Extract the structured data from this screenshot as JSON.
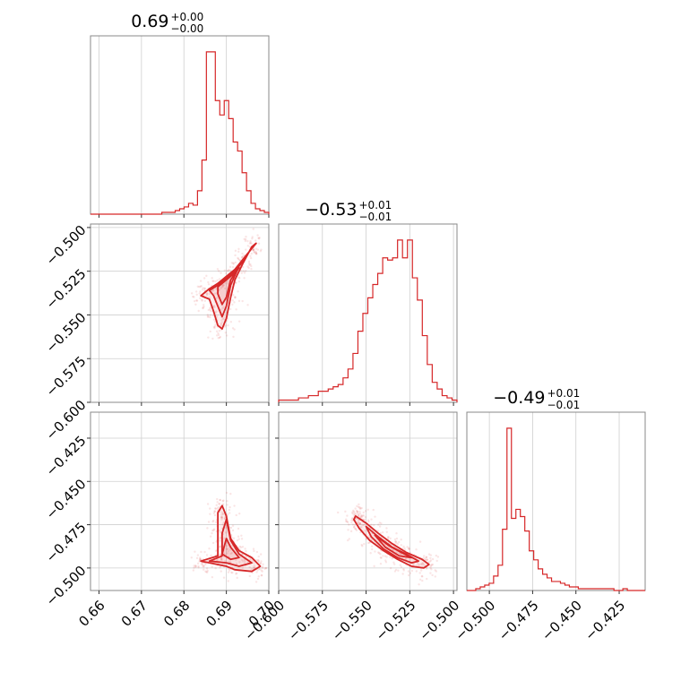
{
  "chart_data": {
    "type": "corner",
    "color": "#d62728",
    "parameters": [
      {
        "title_value": "0.69",
        "title_plus": "+0.00",
        "title_minus": "−0.00",
        "range": [
          0.658,
          0.7
        ],
        "ticks": [
          0.66,
          0.67,
          0.68,
          0.69,
          0.7
        ],
        "tick_labels": [
          "0.66",
          "0.67",
          "0.68",
          "0.69",
          "0.70"
        ]
      },
      {
        "title_value": "−0.53",
        "title_plus": "+0.01",
        "title_minus": "−0.01",
        "range": [
          -0.6,
          -0.498
        ],
        "ticks": [
          -0.6,
          -0.575,
          -0.55,
          -0.525,
          -0.5
        ],
        "tick_labels": [
          "−0.600",
          "−0.575",
          "−0.550",
          "−0.525",
          "−0.500"
        ]
      },
      {
        "title_value": "−0.49",
        "title_plus": "+0.01",
        "title_minus": "−0.01",
        "range": [
          -0.513,
          -0.41
        ],
        "ticks": [
          -0.5,
          -0.475,
          -0.45,
          -0.425
        ],
        "tick_labels": [
          "−0.500",
          "−0.475",
          "−0.450",
          "−0.425"
        ]
      }
    ],
    "histograms": [
      {
        "edges": [
          0.658,
          0.7
        ],
        "counts": [
          0,
          0,
          0,
          0,
          0,
          0,
          0,
          0,
          0,
          0,
          0,
          0,
          0,
          0,
          0,
          0,
          1,
          1,
          1,
          2,
          3,
          4,
          6,
          5,
          13,
          30,
          90,
          90,
          63,
          55,
          63,
          53,
          40,
          35,
          23,
          13,
          6,
          3,
          2,
          1
        ]
      },
      {
        "edges": [
          -0.6,
          -0.498
        ],
        "counts": [
          1,
          1,
          1,
          1,
          2,
          2,
          3,
          3,
          5,
          5,
          6,
          7,
          8,
          11,
          15,
          22,
          32,
          40,
          47,
          53,
          58,
          65,
          64,
          65,
          73,
          65,
          73,
          56,
          46,
          30,
          17,
          9,
          6,
          3,
          2,
          1
        ]
      },
      {
        "edges": [
          -0.513,
          -0.41
        ],
        "counts": [
          0,
          0,
          1,
          2,
          3,
          4,
          8,
          14,
          34,
          90,
          40,
          45,
          41,
          33,
          22,
          17,
          12,
          9,
          7,
          5,
          5,
          4,
          3,
          2,
          2,
          1,
          1,
          1,
          1,
          1,
          1,
          1,
          1,
          0,
          0,
          1,
          0,
          0,
          0,
          0
        ]
      }
    ],
    "pairs": [
      {
        "x": 0,
        "y": 1,
        "contours": [
          [
            [
              0.684,
              -0.539
            ],
            [
              0.686,
              -0.535
            ],
            [
              0.688,
              -0.532
            ],
            [
              0.69,
              -0.528
            ],
            [
              0.692,
              -0.524
            ],
            [
              0.694,
              -0.518
            ],
            [
              0.696,
              -0.512
            ],
            [
              0.697,
              -0.509
            ],
            [
              0.696,
              -0.511
            ],
            [
              0.694,
              -0.52
            ],
            [
              0.692,
              -0.53
            ],
            [
              0.691,
              -0.54
            ],
            [
              0.69,
              -0.552
            ],
            [
              0.689,
              -0.558
            ],
            [
              0.688,
              -0.556
            ],
            [
              0.687,
              -0.548
            ],
            [
              0.686,
              -0.541
            ],
            [
              0.684,
              -0.539
            ]
          ],
          [
            [
              0.686,
              -0.536
            ],
            [
              0.688,
              -0.533
            ],
            [
              0.69,
              -0.529
            ],
            [
              0.692,
              -0.525
            ],
            [
              0.694,
              -0.519
            ],
            [
              0.695,
              -0.515
            ],
            [
              0.693,
              -0.522
            ],
            [
              0.691,
              -0.533
            ],
            [
              0.69,
              -0.545
            ],
            [
              0.689,
              -0.551
            ],
            [
              0.688,
              -0.545
            ],
            [
              0.687,
              -0.539
            ],
            [
              0.686,
              -0.536
            ]
          ],
          [
            [
              0.688,
              -0.534
            ],
            [
              0.69,
              -0.53
            ],
            [
              0.692,
              -0.526
            ],
            [
              0.693,
              -0.523
            ],
            [
              0.691,
              -0.53
            ],
            [
              0.69,
              -0.54
            ],
            [
              0.689,
              -0.544
            ],
            [
              0.688,
              -0.538
            ],
            [
              0.688,
              -0.534
            ]
          ]
        ]
      },
      {
        "x": 0,
        "y": 2,
        "contours": [
          [
            [
              0.684,
              -0.496
            ],
            [
              0.688,
              -0.493
            ],
            [
              0.688,
              -0.48
            ],
            [
              0.688,
              -0.468
            ],
            [
              0.689,
              -0.464
            ],
            [
              0.69,
              -0.47
            ],
            [
              0.691,
              -0.483
            ],
            [
              0.693,
              -0.49
            ],
            [
              0.696,
              -0.494
            ],
            [
              0.698,
              -0.499
            ],
            [
              0.696,
              -0.502
            ],
            [
              0.692,
              -0.501
            ],
            [
              0.69,
              -0.499
            ],
            [
              0.688,
              -0.498
            ],
            [
              0.684,
              -0.496
            ]
          ],
          [
            [
              0.686,
              -0.496
            ],
            [
              0.689,
              -0.493
            ],
            [
              0.689,
              -0.48
            ],
            [
              0.69,
              -0.472
            ],
            [
              0.691,
              -0.484
            ],
            [
              0.693,
              -0.492
            ],
            [
              0.696,
              -0.497
            ],
            [
              0.693,
              -0.499
            ],
            [
              0.69,
              -0.497
            ],
            [
              0.686,
              -0.496
            ]
          ],
          [
            [
              0.689,
              -0.492
            ],
            [
              0.69,
              -0.483
            ],
            [
              0.691,
              -0.488
            ],
            [
              0.693,
              -0.494
            ],
            [
              0.691,
              -0.495
            ],
            [
              0.689,
              -0.492
            ]
          ]
        ]
      },
      {
        "x": 1,
        "y": 2,
        "contours": [
          [
            [
              -0.556,
              -0.47
            ],
            [
              -0.55,
              -0.474
            ],
            [
              -0.543,
              -0.48
            ],
            [
              -0.535,
              -0.486
            ],
            [
              -0.527,
              -0.491
            ],
            [
              -0.518,
              -0.495
            ],
            [
              -0.514,
              -0.498
            ],
            [
              -0.517,
              -0.5
            ],
            [
              -0.524,
              -0.499
            ],
            [
              -0.532,
              -0.495
            ],
            [
              -0.54,
              -0.49
            ],
            [
              -0.548,
              -0.484
            ],
            [
              -0.554,
              -0.477
            ],
            [
              -0.557,
              -0.472
            ],
            [
              -0.556,
              -0.47
            ]
          ],
          [
            [
              -0.55,
              -0.476
            ],
            [
              -0.543,
              -0.482
            ],
            [
              -0.535,
              -0.488
            ],
            [
              -0.527,
              -0.492
            ],
            [
              -0.52,
              -0.496
            ],
            [
              -0.524,
              -0.497
            ],
            [
              -0.532,
              -0.494
            ],
            [
              -0.54,
              -0.489
            ],
            [
              -0.547,
              -0.482
            ],
            [
              -0.55,
              -0.476
            ]
          ],
          [
            [
              -0.545,
              -0.481
            ],
            [
              -0.537,
              -0.487
            ],
            [
              -0.53,
              -0.491
            ],
            [
              -0.524,
              -0.494
            ],
            [
              -0.531,
              -0.493
            ],
            [
              -0.539,
              -0.488
            ],
            [
              -0.545,
              -0.481
            ]
          ]
        ]
      }
    ],
    "grid": true
  }
}
